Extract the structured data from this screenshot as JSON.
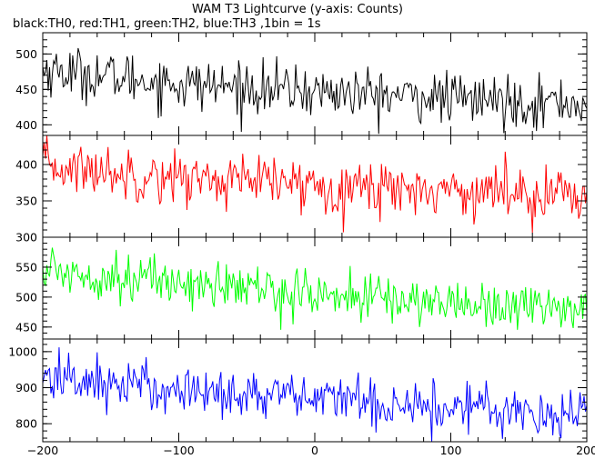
{
  "title": "WAM T3 Lightcurve (y-axis: Counts)",
  "subtitle": "black:TH0, red:TH1, green:TH2, blue:TH3 ,1bin = 1s",
  "chart_data": {
    "type": "line",
    "x_range": [
      -200,
      200
    ],
    "x_ticks": [
      -200,
      -100,
      0,
      100,
      200
    ],
    "x_tick_labels": [
      "−200",
      "−100",
      "0",
      "100",
      "200"
    ],
    "bin_size_s": 1,
    "series": [
      {
        "name": "TH0",
        "color": "#000000",
        "ylim": [
          385,
          530
        ],
        "y_ticks": [
          400,
          450,
          500
        ],
        "y_tick_labels": [
          "400",
          "450",
          "500"
        ],
        "trend": [
          {
            "x": -200,
            "y": 478
          },
          {
            "x": -100,
            "y": 458
          },
          {
            "x": 0,
            "y": 447
          },
          {
            "x": 100,
            "y": 437
          },
          {
            "x": 200,
            "y": 430
          }
        ],
        "noise": 18
      },
      {
        "name": "TH1",
        "color": "#ff0000",
        "ylim": [
          300,
          440
        ],
        "y_ticks": [
          300,
          350,
          400
        ],
        "y_tick_labels": [
          "300",
          "350",
          "400"
        ],
        "trend": [
          {
            "x": -200,
            "y": 398
          },
          {
            "x": -100,
            "y": 382
          },
          {
            "x": 0,
            "y": 372
          },
          {
            "x": 100,
            "y": 365
          },
          {
            "x": 200,
            "y": 360
          }
        ],
        "noise": 18
      },
      {
        "name": "TH2",
        "color": "#00ff00",
        "ylim": [
          430,
          600
        ],
        "y_ticks": [
          450,
          500,
          550
        ],
        "y_tick_labels": [
          "450",
          "500",
          "550"
        ],
        "trend": [
          {
            "x": -200,
            "y": 545
          },
          {
            "x": -100,
            "y": 525
          },
          {
            "x": 0,
            "y": 505
          },
          {
            "x": 100,
            "y": 490
          },
          {
            "x": 200,
            "y": 482
          }
        ],
        "noise": 20
      },
      {
        "name": "TH3",
        "color": "#0000ff",
        "ylim": [
          750,
          1035
        ],
        "y_ticks": [
          800,
          900,
          1000
        ],
        "y_tick_labels": [
          "800",
          "900",
          "1000"
        ],
        "trend": [
          {
            "x": -200,
            "y": 930
          },
          {
            "x": -100,
            "y": 895
          },
          {
            "x": 0,
            "y": 870
          },
          {
            "x": 100,
            "y": 848
          },
          {
            "x": 200,
            "y": 828
          }
        ],
        "noise": 35
      }
    ]
  }
}
